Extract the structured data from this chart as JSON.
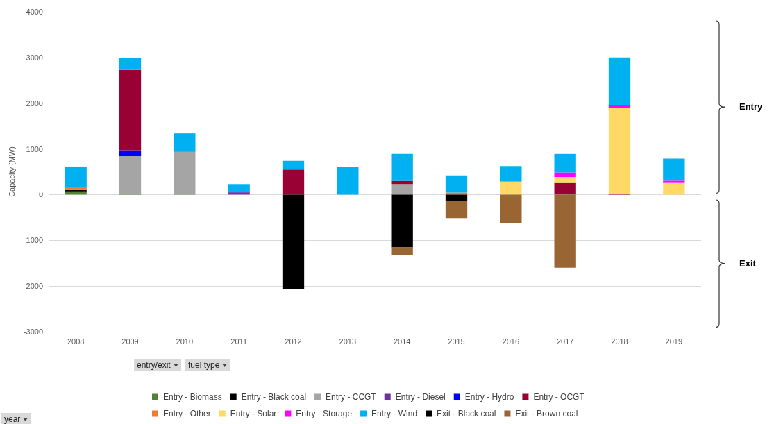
{
  "chart_data": {
    "type": "bar",
    "stacked": true,
    "ylabel": "Capacity (MW)",
    "categories": [
      "2008",
      "2009",
      "2010",
      "2011",
      "2012",
      "2013",
      "2014",
      "2015",
      "2016",
      "2017",
      "2018",
      "2019"
    ],
    "ylim": [
      -3000,
      4000
    ],
    "yticks": [
      -3000,
      -2000,
      -1000,
      0,
      1000,
      2000,
      3000,
      4000
    ],
    "grid": "y",
    "legend": "bottom",
    "annotations": [
      "Entry",
      "Exit",
      "entry/exit",
      "fuel type",
      "year"
    ],
    "series": [
      {
        "name": "Entry - Biomass",
        "color": "#548235",
        "values": [
          70,
          20,
          20,
          null,
          null,
          null,
          null,
          null,
          null,
          null,
          null,
          null
        ]
      },
      {
        "name": "Entry - Black coal",
        "color": "#000000",
        "values": [
          30,
          null,
          null,
          null,
          null,
          null,
          null,
          null,
          null,
          null,
          null,
          null
        ]
      },
      {
        "name": "Entry - CCGT",
        "color": "#a5a5a5",
        "values": [
          null,
          820,
          915,
          null,
          null,
          null,
          230,
          null,
          null,
          null,
          null,
          null
        ]
      },
      {
        "name": "Entry - Diesel",
        "color": "#7030a0",
        "values": [
          null,
          null,
          null,
          50,
          null,
          null,
          null,
          null,
          null,
          null,
          null,
          null
        ]
      },
      {
        "name": "Entry - Hydro",
        "color": "#0000ff",
        "values": [
          null,
          130,
          null,
          null,
          null,
          null,
          null,
          null,
          null,
          null,
          null,
          null
        ]
      },
      {
        "name": "Entry - OCGT",
        "color": "#990033",
        "values": [
          null,
          1760,
          null,
          null,
          550,
          null,
          70,
          null,
          null,
          270,
          20,
          null
        ]
      },
      {
        "name": "Entry - Other",
        "color": "#ed7d31",
        "values": [
          60,
          null,
          null,
          null,
          null,
          null,
          null,
          45,
          null,
          null,
          null,
          null
        ]
      },
      {
        "name": "Entry - Solar",
        "color": "#ffd966",
        "values": [
          null,
          null,
          null,
          null,
          null,
          null,
          null,
          null,
          285,
          115,
          1880,
          270
        ]
      },
      {
        "name": "Entry - Storage",
        "color": "#ff00ff",
        "values": [
          null,
          null,
          null,
          null,
          null,
          null,
          null,
          null,
          null,
          100,
          60,
          35
        ]
      },
      {
        "name": "Entry - Wind",
        "color": "#00b0f0",
        "values": [
          455,
          260,
          405,
          180,
          190,
          600,
          590,
          375,
          340,
          405,
          1040,
          485
        ]
      },
      {
        "name": "Exit - Black coal",
        "color": "#000000",
        "values": [
          null,
          null,
          null,
          null,
          -2070,
          null,
          -1155,
          -130,
          null,
          null,
          null,
          null
        ]
      },
      {
        "name": "Exit - Brown coal",
        "color": "#996633",
        "values": [
          null,
          null,
          null,
          null,
          null,
          null,
          -160,
          -385,
          -615,
          -1600,
          null,
          null
        ]
      }
    ]
  }
}
